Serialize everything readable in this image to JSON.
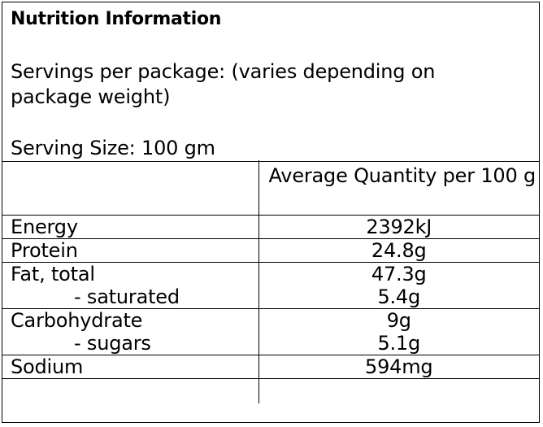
{
  "panel": {
    "title": "Nutrition Information",
    "servings_per_package": "Servings per package: (varies depending on package weight)",
    "serving_size": "Serving Size: 100 gm"
  },
  "table": {
    "column_header": "Average Quantity per 100 g",
    "rows": [
      {
        "label": "Energy",
        "value": "2392kJ"
      },
      {
        "label": "Protein",
        "value": "24.8g"
      },
      {
        "label": "Fat, total",
        "value": "47.3g"
      },
      {
        "label": "- saturated",
        "value": "5.4g"
      },
      {
        "label": "Carbohydrate",
        "value": "9g"
      },
      {
        "label": "- sugars",
        "value": "5.1g"
      },
      {
        "label": "Sodium",
        "value": "594mg"
      }
    ]
  }
}
